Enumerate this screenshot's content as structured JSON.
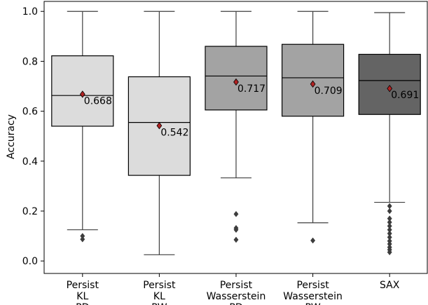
{
  "chart_data": {
    "type": "box",
    "ylabel": "Accuracy",
    "xlabel": "",
    "ylim": [
      -0.05,
      1.04
    ],
    "yticks": [
      0.0,
      0.2,
      0.4,
      0.6,
      0.8,
      1.0
    ],
    "ytick_labels": [
      "0.0",
      "0.2",
      "0.4",
      "0.6",
      "0.8",
      "1.0"
    ],
    "grid": false,
    "legend": "none",
    "categories": [
      [
        "Persist",
        "KL",
        "PD"
      ],
      [
        "Persist",
        "KL",
        "PW"
      ],
      [
        "Persist",
        "Wasserstein",
        "PD"
      ],
      [
        "Persist",
        "Wasserstein",
        "PW"
      ],
      [
        "SAX"
      ]
    ],
    "boxes": [
      {
        "whisker_low": 0.125,
        "q1": 0.54,
        "median": 0.663,
        "q3": 0.822,
        "whisker_high": 1.0,
        "mean": 0.668,
        "mean_label": "0.668",
        "fliers": [
          0.1,
          0.087
        ],
        "color": "#dcdcdc"
      },
      {
        "whisker_low": 0.025,
        "q1": 0.343,
        "median": 0.555,
        "q3": 0.738,
        "whisker_high": 1.0,
        "mean": 0.542,
        "mean_label": "0.542",
        "fliers": [],
        "color": "#dcdcdc"
      },
      {
        "whisker_low": 0.333,
        "q1": 0.605,
        "median": 0.741,
        "q3": 0.86,
        "whisker_high": 1.0,
        "mean": 0.717,
        "mean_label": "0.717",
        "fliers": [
          0.188,
          0.132,
          0.125,
          0.085
        ],
        "color": "#a3a3a3"
      },
      {
        "whisker_low": 0.153,
        "q1": 0.58,
        "median": 0.734,
        "q3": 0.868,
        "whisker_high": 1.0,
        "mean": 0.709,
        "mean_label": "0.709",
        "fliers": [
          0.082
        ],
        "color": "#a3a3a3"
      },
      {
        "whisker_low": 0.235,
        "q1": 0.587,
        "median": 0.723,
        "q3": 0.828,
        "whisker_high": 0.995,
        "mean": 0.691,
        "mean_label": "0.691",
        "fliers": [
          0.22,
          0.2,
          0.17,
          0.155,
          0.14,
          0.125,
          0.11,
          0.095,
          0.08,
          0.068,
          0.055,
          0.045,
          0.035
        ],
        "color": "#646464"
      }
    ],
    "mean_marker_color": "#b22222"
  }
}
